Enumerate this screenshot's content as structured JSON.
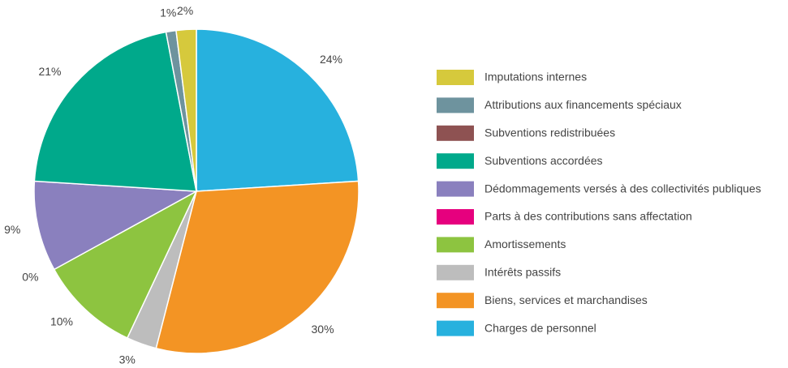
{
  "chart_data": {
    "type": "pie",
    "categories": [
      "Imputations internes",
      "Attributions aux financements spéciaux",
      "Subventions redistribuées",
      "Subventions accordées",
      "Dédommagements versés à des collectivités publiques",
      "Parts à des contributions sans affectation",
      "Amortissements",
      "Intérêts passifs",
      "Biens, services et marchandises",
      "Charges de personnel"
    ],
    "values": [
      2,
      1,
      0,
      21,
      9,
      0,
      10,
      3,
      30,
      24
    ],
    "value_labels": [
      "2%",
      "1%",
      null,
      "21%",
      "9%",
      "0%",
      "10%",
      "3%",
      "30%",
      "24%"
    ],
    "colors": [
      "#d6c93c",
      "#6e939e",
      "#8e5252",
      "#00a98b",
      "#8a80be",
      "#e6007e",
      "#8dc440",
      "#bdbdbd",
      "#f39424",
      "#27b1de"
    ],
    "legend": "right"
  }
}
